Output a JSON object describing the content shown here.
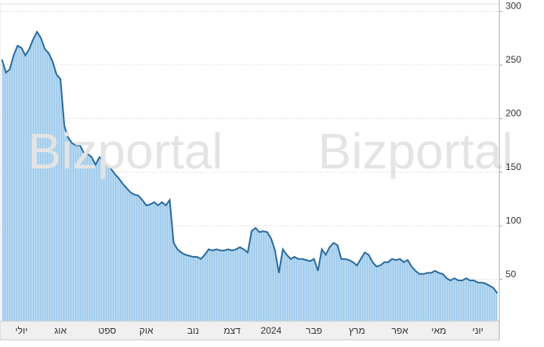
{
  "chart_data": {
    "type": "area",
    "watermark": "Bizportal",
    "categories": [
      null,
      null,
      null,
      null,
      null,
      "יולי",
      null,
      null,
      null,
      null,
      null,
      null,
      null,
      null,
      null,
      "אוג",
      null,
      null,
      null,
      null,
      null,
      null,
      null,
      null,
      null,
      null,
      null,
      "ספט",
      null,
      null,
      null,
      null,
      null,
      null,
      null,
      null,
      null,
      "אוק",
      null,
      null,
      null,
      null,
      null,
      null,
      null,
      null,
      null,
      null,
      null,
      "נוב",
      null,
      null,
      null,
      null,
      null,
      null,
      null,
      null,
      null,
      "דצמ",
      null,
      null,
      null,
      null,
      null,
      null,
      null,
      null,
      null,
      "2024",
      null,
      null,
      null,
      null,
      null,
      null,
      null,
      null,
      null,
      null,
      "פבר",
      null,
      null,
      null,
      null,
      null,
      null,
      null,
      null,
      null,
      null,
      "מרץ",
      null,
      null,
      null,
      null,
      null,
      null,
      null,
      null,
      null,
      null,
      "אפר",
      null,
      null,
      null,
      null,
      null,
      null,
      null,
      null,
      null,
      "מאי",
      null,
      null,
      null,
      null,
      null,
      null,
      null,
      null,
      null,
      "יוני",
      null,
      null,
      null,
      null,
      null
    ],
    "values": [
      255,
      243,
      246,
      259,
      268,
      266,
      259,
      265,
      274,
      281,
      275,
      265,
      261,
      253,
      241,
      237,
      193,
      182,
      177,
      175,
      175,
      168,
      167,
      164,
      157,
      164,
      161,
      157,
      153,
      148,
      144,
      139,
      135,
      131,
      129,
      128,
      124,
      119,
      120,
      122,
      119,
      122,
      119,
      124,
      84,
      78,
      75,
      73,
      72,
      71,
      71,
      69,
      73,
      78,
      77,
      78,
      77,
      77,
      78,
      77,
      78,
      80,
      78,
      75,
      95,
      98,
      94,
      95,
      94,
      88,
      77,
      56,
      78,
      73,
      69,
      71,
      69,
      69,
      68,
      67,
      69,
      58,
      78,
      73,
      80,
      84,
      82,
      69,
      69,
      68,
      66,
      63,
      69,
      75,
      73,
      66,
      62,
      63,
      66,
      66,
      69,
      68,
      69,
      66,
      68,
      62,
      58,
      55,
      55,
      56,
      56,
      58,
      56,
      55,
      51,
      49,
      51,
      49,
      49,
      51,
      49,
      49,
      47,
      47,
      46,
      44,
      42,
      37
    ],
    "color": "#2a6a9e",
    "fill": "#a9d1ef",
    "ylim": [
      11,
      307
    ],
    "yticks": [
      50,
      100,
      150,
      200,
      250,
      300
    ],
    "grid": true
  }
}
